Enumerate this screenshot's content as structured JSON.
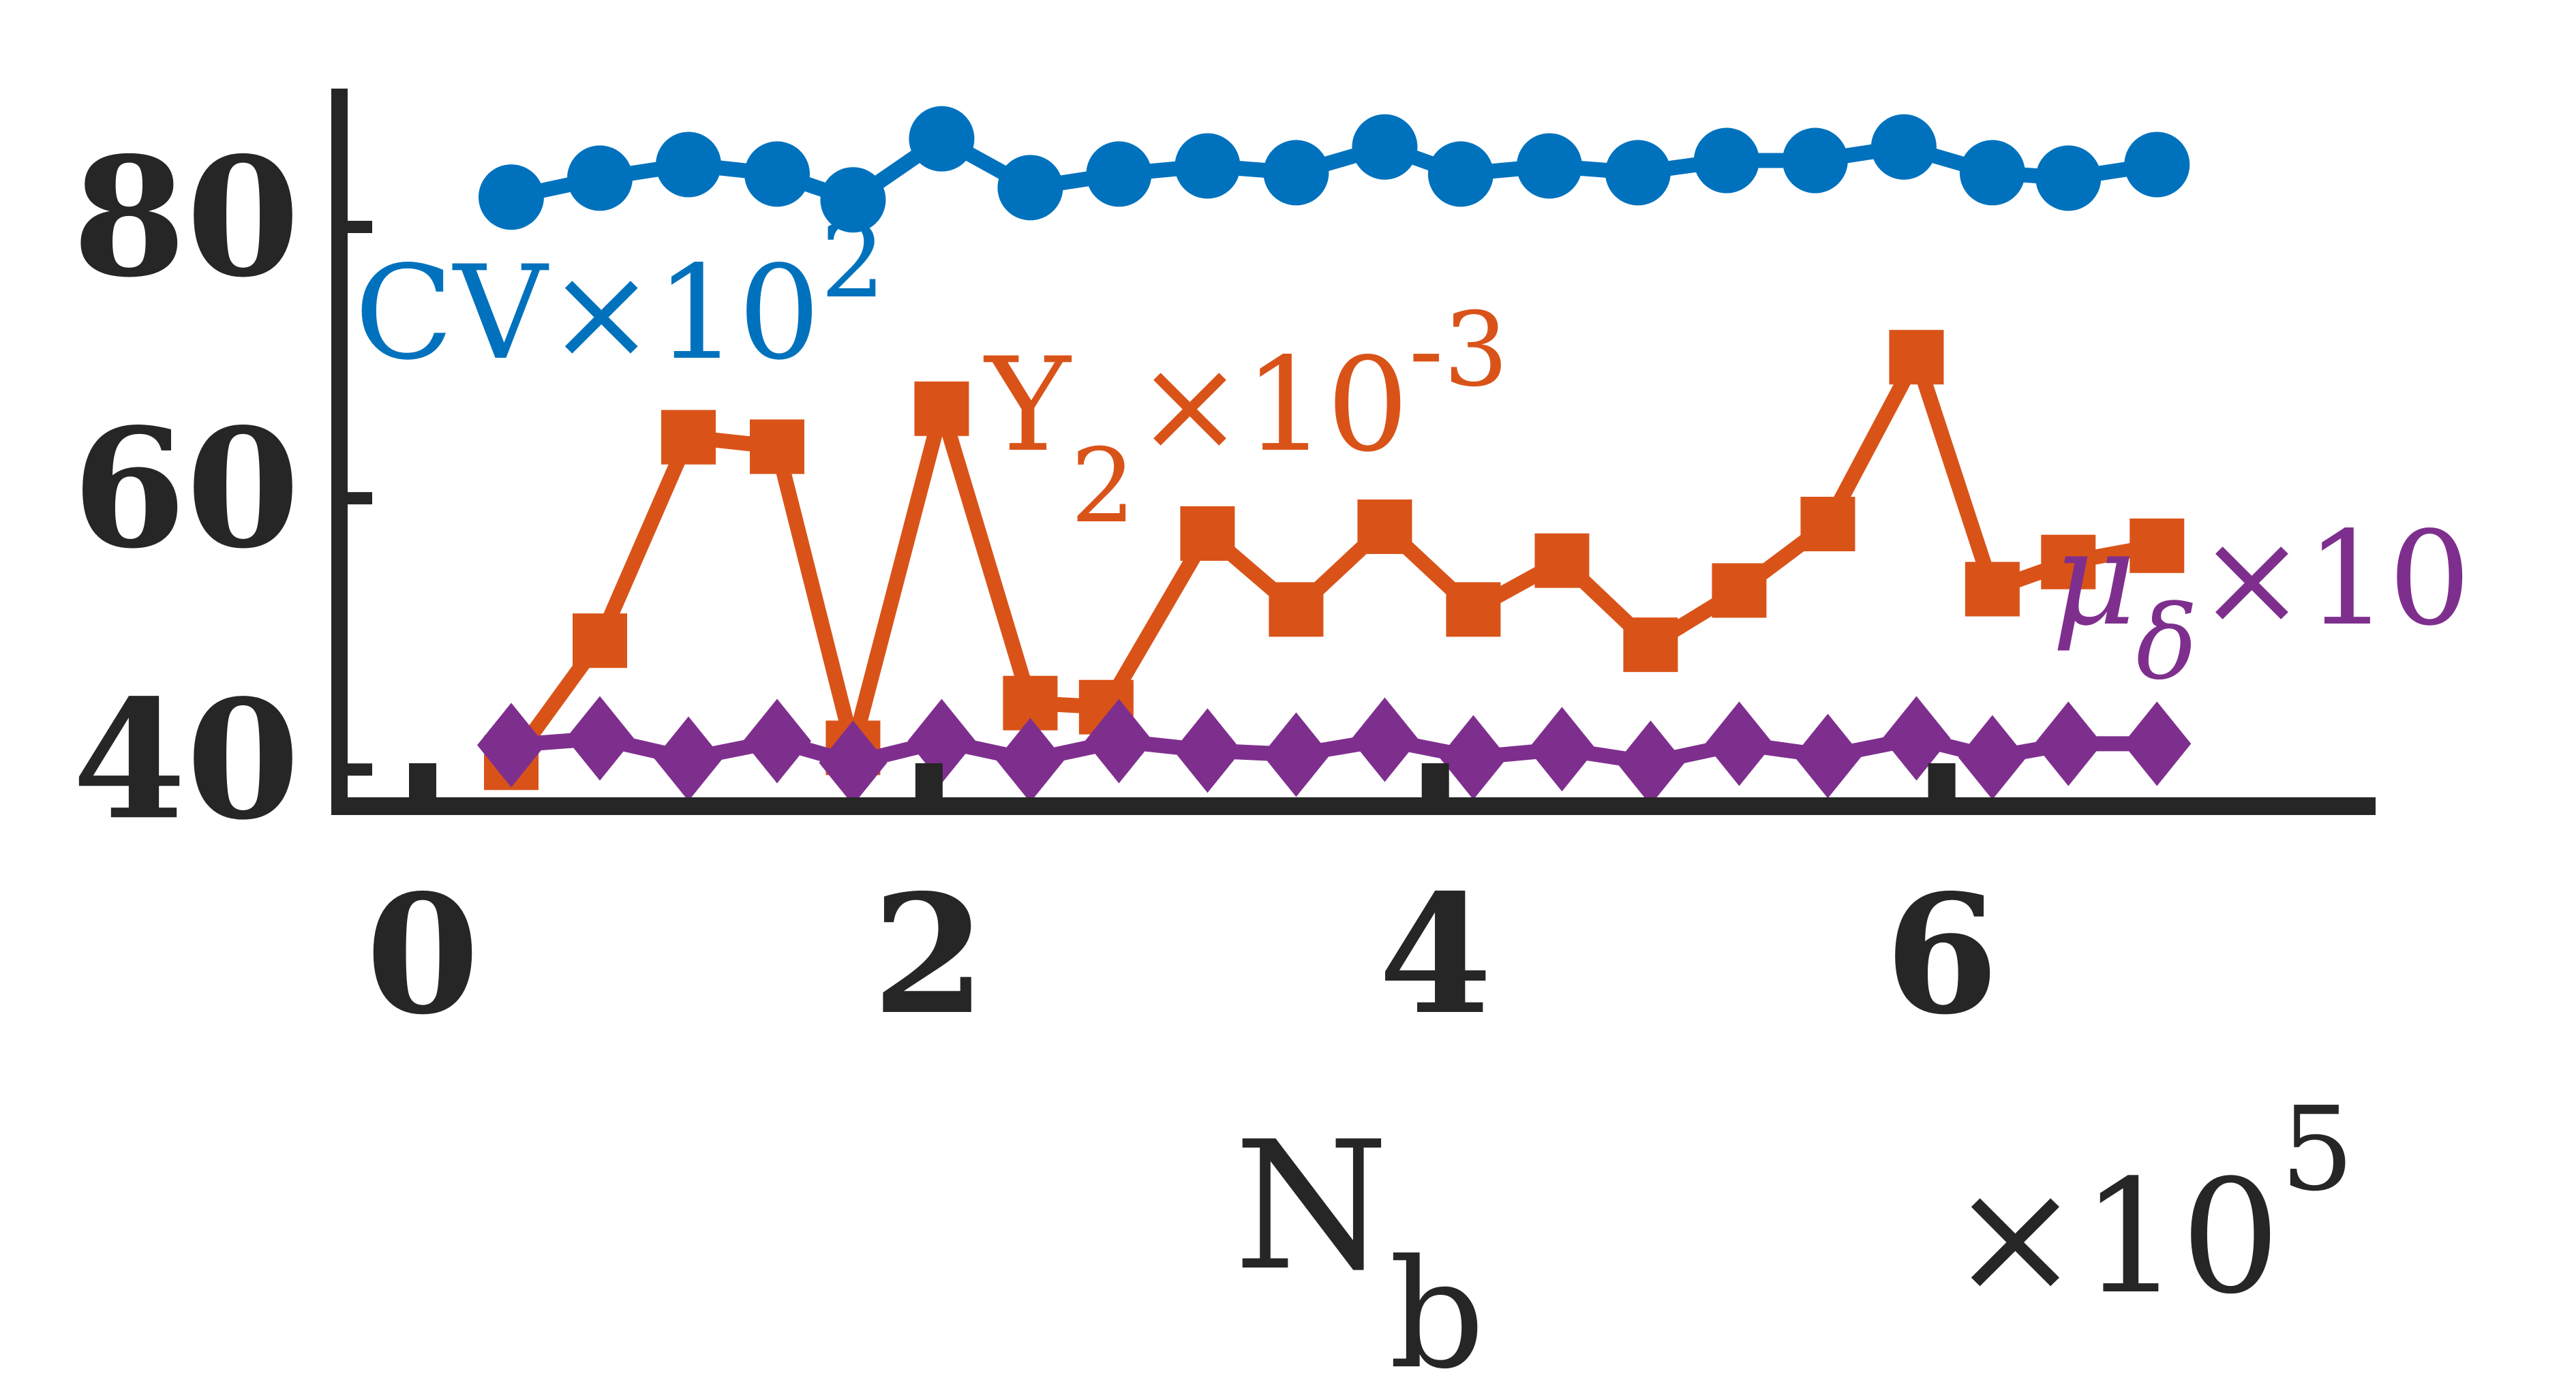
{
  "chart_data": {
    "type": "line",
    "x_multiplier_label": "×10",
    "x_multiplier_exp": "5",
    "xlabel_main": "N",
    "xlabel_sub": "b",
    "xticks": [
      0,
      2,
      4,
      6
    ],
    "yticks": [
      40,
      60,
      80
    ],
    "xlim": [
      0,
      7.7
    ],
    "ylim": [
      37.3,
      90
    ],
    "grid": false,
    "series": [
      {
        "key": "cv",
        "label_main": "CV×10",
        "label_exp": "2",
        "color": "#0072BD",
        "marker": "circle",
        "x": [
          0.35,
          0.7,
          1.05,
          1.4,
          1.7,
          2.05,
          2.4,
          2.75,
          3.1,
          3.45,
          3.8,
          4.1,
          4.45,
          4.8,
          5.15,
          5.5,
          5.85,
          6.2,
          6.5,
          6.85
        ],
        "y": [
          82.2,
          83.6,
          84.6,
          83.9,
          82.0,
          86.5,
          82.9,
          83.9,
          84.5,
          84.0,
          85.9,
          83.9,
          84.5,
          84.0,
          84.9,
          84.9,
          85.9,
          84.0,
          83.6,
          84.6
        ]
      },
      {
        "key": "y2",
        "label_main": "Y",
        "label_sub": "2",
        "label_rest": "×10",
        "label_exp": "-3",
        "color": "#D95319",
        "marker": "square",
        "x": [
          0.35,
          0.7,
          1.05,
          1.4,
          1.7,
          2.05,
          2.4,
          2.7,
          3.1,
          3.45,
          3.8,
          4.15,
          4.5,
          4.85,
          5.2,
          5.55,
          5.9,
          6.2,
          6.5,
          6.85
        ],
        "y": [
          40.5,
          49.5,
          64.5,
          63.8,
          41.6,
          66.6,
          44.9,
          44.6,
          57.4,
          51.8,
          57.9,
          51.8,
          55.4,
          49.2,
          53.2,
          58.1,
          70.4,
          53.3,
          55.3,
          56.5
        ]
      },
      {
        "key": "mu",
        "label_main": "μ",
        "label_sub": "δ",
        "label_rest": "×10",
        "color": "#7E2F8E",
        "marker": "diamond",
        "x": [
          0.35,
          0.7,
          1.05,
          1.4,
          1.7,
          2.05,
          2.4,
          2.75,
          3.1,
          3.45,
          3.8,
          4.15,
          4.5,
          4.85,
          5.2,
          5.55,
          5.9,
          6.2,
          6.5,
          6.85
        ],
        "y": [
          41.8,
          42.3,
          40.8,
          42.1,
          40.5,
          42.1,
          40.7,
          42.1,
          41.4,
          41.1,
          42.2,
          40.9,
          41.5,
          40.5,
          41.9,
          41.0,
          42.3,
          40.9,
          41.9,
          41.9
        ]
      }
    ]
  }
}
